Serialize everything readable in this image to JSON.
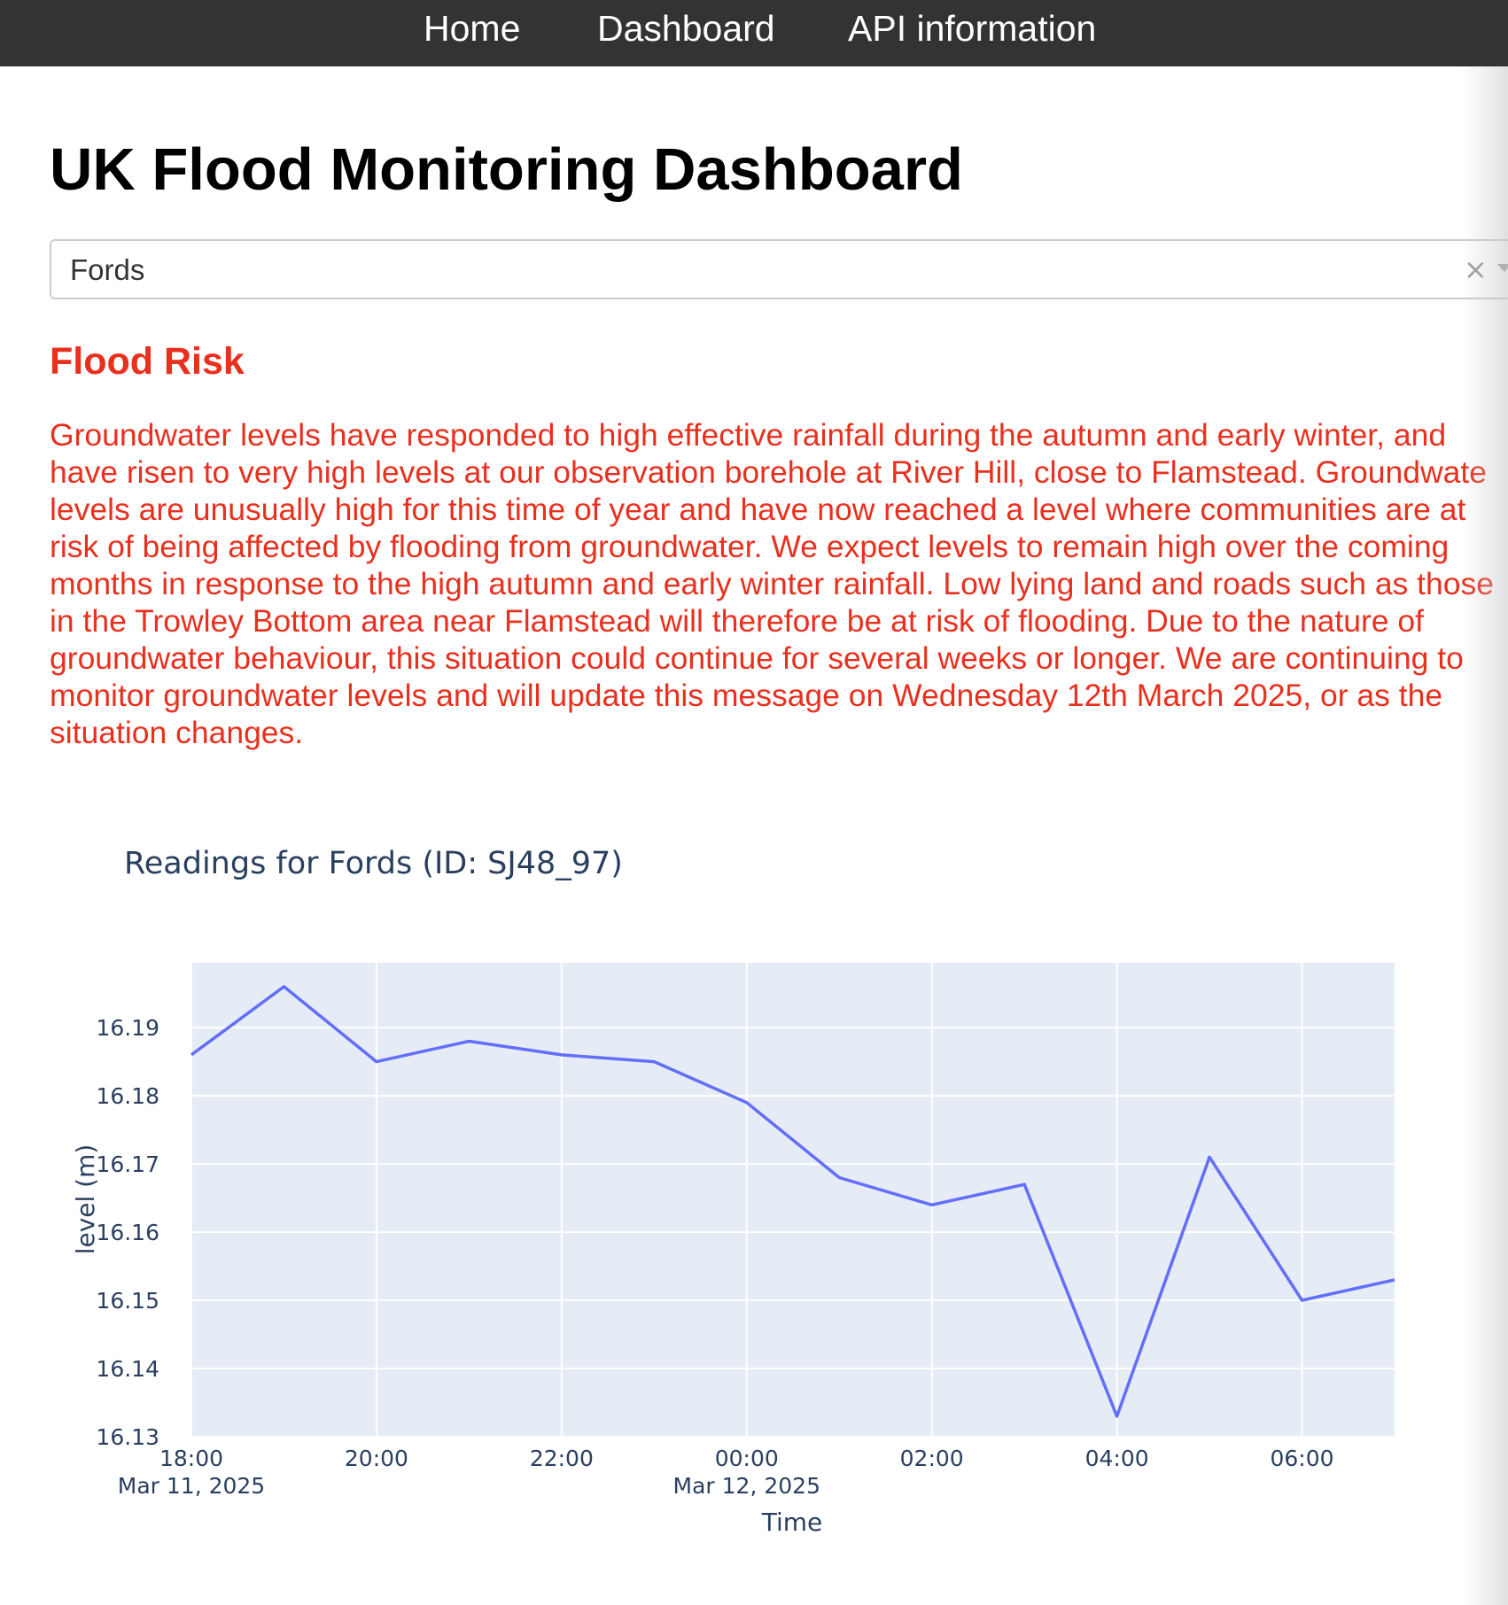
{
  "nav": {
    "home": "Home",
    "dashboard": "Dashboard",
    "api": "API information"
  },
  "page": {
    "title": "UK Flood Monitoring Dashboard"
  },
  "station_select": {
    "value": "Fords",
    "clear_icon": "×"
  },
  "flood_risk": {
    "heading": "Flood Risk",
    "message_lines": [
      "Groundwater levels have responded to high effective rainfall during the autumn and early winter, and",
      "have risen to very high levels at our observation borehole at River Hill, close to Flamstead. Groundwate",
      "levels are unusually high for this time of year and have now reached a level where communities are at",
      "risk of being affected by flooding from groundwater. We expect levels to remain high over the coming",
      "months in response to the high autumn and early winter rainfall. Low lying land and roads such as those",
      "in the Trowley Bottom area near Flamstead will therefore be at risk of flooding. Due to the nature of",
      "groundwater behaviour, this situation could continue for several weeks or longer. We are continuing to",
      "monitor groundwater levels and will update this message on Wednesday 12th March 2025, or as the",
      "situation changes."
    ]
  },
  "colors": {
    "nav_bg": "#333333",
    "risk_red": "#e8301e",
    "plot_bg": "#e5ecf6",
    "line": "#636efa",
    "axis_text": "#2a3f5f"
  },
  "chart_data": {
    "type": "line",
    "title": "Readings for Fords (ID: SJ48_97)",
    "xlabel": "Time",
    "ylabel": "level (m)",
    "x": [
      "2025-03-11 18:00",
      "2025-03-11 19:00",
      "2025-03-11 20:00",
      "2025-03-11 21:00",
      "2025-03-11 22:00",
      "2025-03-11 23:00",
      "2025-03-12 00:00",
      "2025-03-12 01:00",
      "2025-03-12 02:00",
      "2025-03-12 03:00",
      "2025-03-12 04:00",
      "2025-03-12 05:00",
      "2025-03-12 06:00",
      "2025-03-12 07:00"
    ],
    "y": [
      16.186,
      16.196,
      16.185,
      16.188,
      16.186,
      16.185,
      16.179,
      16.168,
      16.164,
      16.167,
      16.133,
      16.171,
      16.15,
      16.153
    ],
    "xlim": [
      "2025-03-11 18:00",
      "2025-03-12 07:00"
    ],
    "ylim": [
      16.13,
      16.1995
    ],
    "x_ticks": [
      {
        "at": "2025-03-11 18:00",
        "label": "18:00",
        "sublabel": "Mar 11, 2025"
      },
      {
        "at": "2025-03-11 20:00",
        "label": "20:00",
        "sublabel": ""
      },
      {
        "at": "2025-03-11 22:00",
        "label": "22:00",
        "sublabel": ""
      },
      {
        "at": "2025-03-12 00:00",
        "label": "00:00",
        "sublabel": "Mar 12, 2025"
      },
      {
        "at": "2025-03-12 02:00",
        "label": "02:00",
        "sublabel": ""
      },
      {
        "at": "2025-03-12 04:00",
        "label": "04:00",
        "sublabel": ""
      },
      {
        "at": "2025-03-12 06:00",
        "label": "06:00",
        "sublabel": ""
      }
    ],
    "y_ticks": [
      "16.13",
      "16.14",
      "16.15",
      "16.16",
      "16.17",
      "16.18",
      "16.19"
    ],
    "grid": true,
    "legend": "none"
  }
}
